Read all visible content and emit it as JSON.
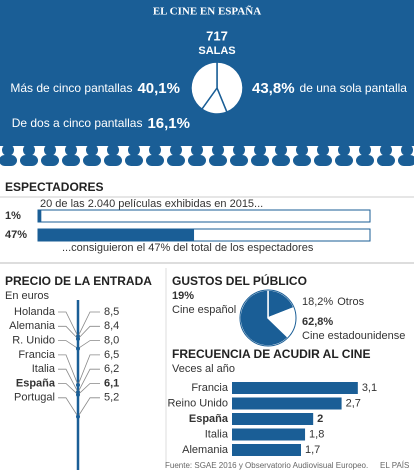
{
  "title": "EL CINE EN ESPAÑA",
  "source": "Fuente: SGAE 2016 y Observatorio Audiovisual Europeo.",
  "credit": "EL PAÍS",
  "chart_data": [
    {
      "type": "pie",
      "center_value": 717,
      "center_label": "SALAS",
      "categories": [
        "de una sola pantalla",
        "De dos a cinco pantallas",
        "Más de cinco pantallas"
      ],
      "values": [
        43.8,
        16.1,
        40.1
      ],
      "value_labels": [
        "43,8%",
        "16,1%",
        "40,1%"
      ],
      "colors": [
        "#ffffff",
        "#ffffff",
        "#ffffff"
      ]
    },
    {
      "type": "progress",
      "title": "ESPECTADORES",
      "annotations": [
        "20 de las 2.040 películas exhibidas en 2015...",
        "...consiguieron el 47% del total de los espectadores"
      ],
      "values": [
        1,
        47
      ],
      "value_labels": [
        "1%",
        "47%"
      ],
      "xlim": [
        0,
        100
      ],
      "color": "#1a5e96"
    },
    {
      "type": "dot",
      "title": "PRECIO DE LA ENTRADA",
      "subtitle": "En euros",
      "categories": [
        "Holanda",
        "Alemania",
        "R. Unido",
        "Francia",
        "Italia",
        "España",
        "Portugal"
      ],
      "values": [
        8.5,
        8.4,
        8.0,
        6.5,
        6.2,
        6.1,
        5.2
      ],
      "value_labels": [
        "8,5",
        "8,4",
        "8,0",
        "6,5",
        "6,2",
        "6,1",
        "5,2"
      ],
      "highlight": 5,
      "ylim": [
        3,
        10
      ],
      "color": "#1a5e96"
    },
    {
      "type": "pie",
      "title": "GUSTOS DEL PÚBLICO",
      "categories": [
        "Cine español",
        "Otros",
        "Cine estadounidense"
      ],
      "values": [
        19,
        18.2,
        62.8
      ],
      "value_labels": [
        "19%",
        "18,2%",
        "62,8%"
      ],
      "colors": [
        "#1a5e96",
        "#ffffff",
        "#1a5e96"
      ]
    },
    {
      "type": "hbar",
      "title": "FRECUENCIA DE ACUDIR AL CINE",
      "subtitle": "Veces al año",
      "categories": [
        "Francia",
        "Reino Unido",
        "España",
        "Italia",
        "Alemania"
      ],
      "values": [
        3.1,
        2.7,
        2,
        1.8,
        1.7
      ],
      "value_labels": [
        "3,1",
        "2,7",
        "2",
        "1,8",
        "1,7"
      ],
      "highlight": 2,
      "xlim": [
        0,
        3.4
      ],
      "color": "#1a5e96"
    }
  ]
}
